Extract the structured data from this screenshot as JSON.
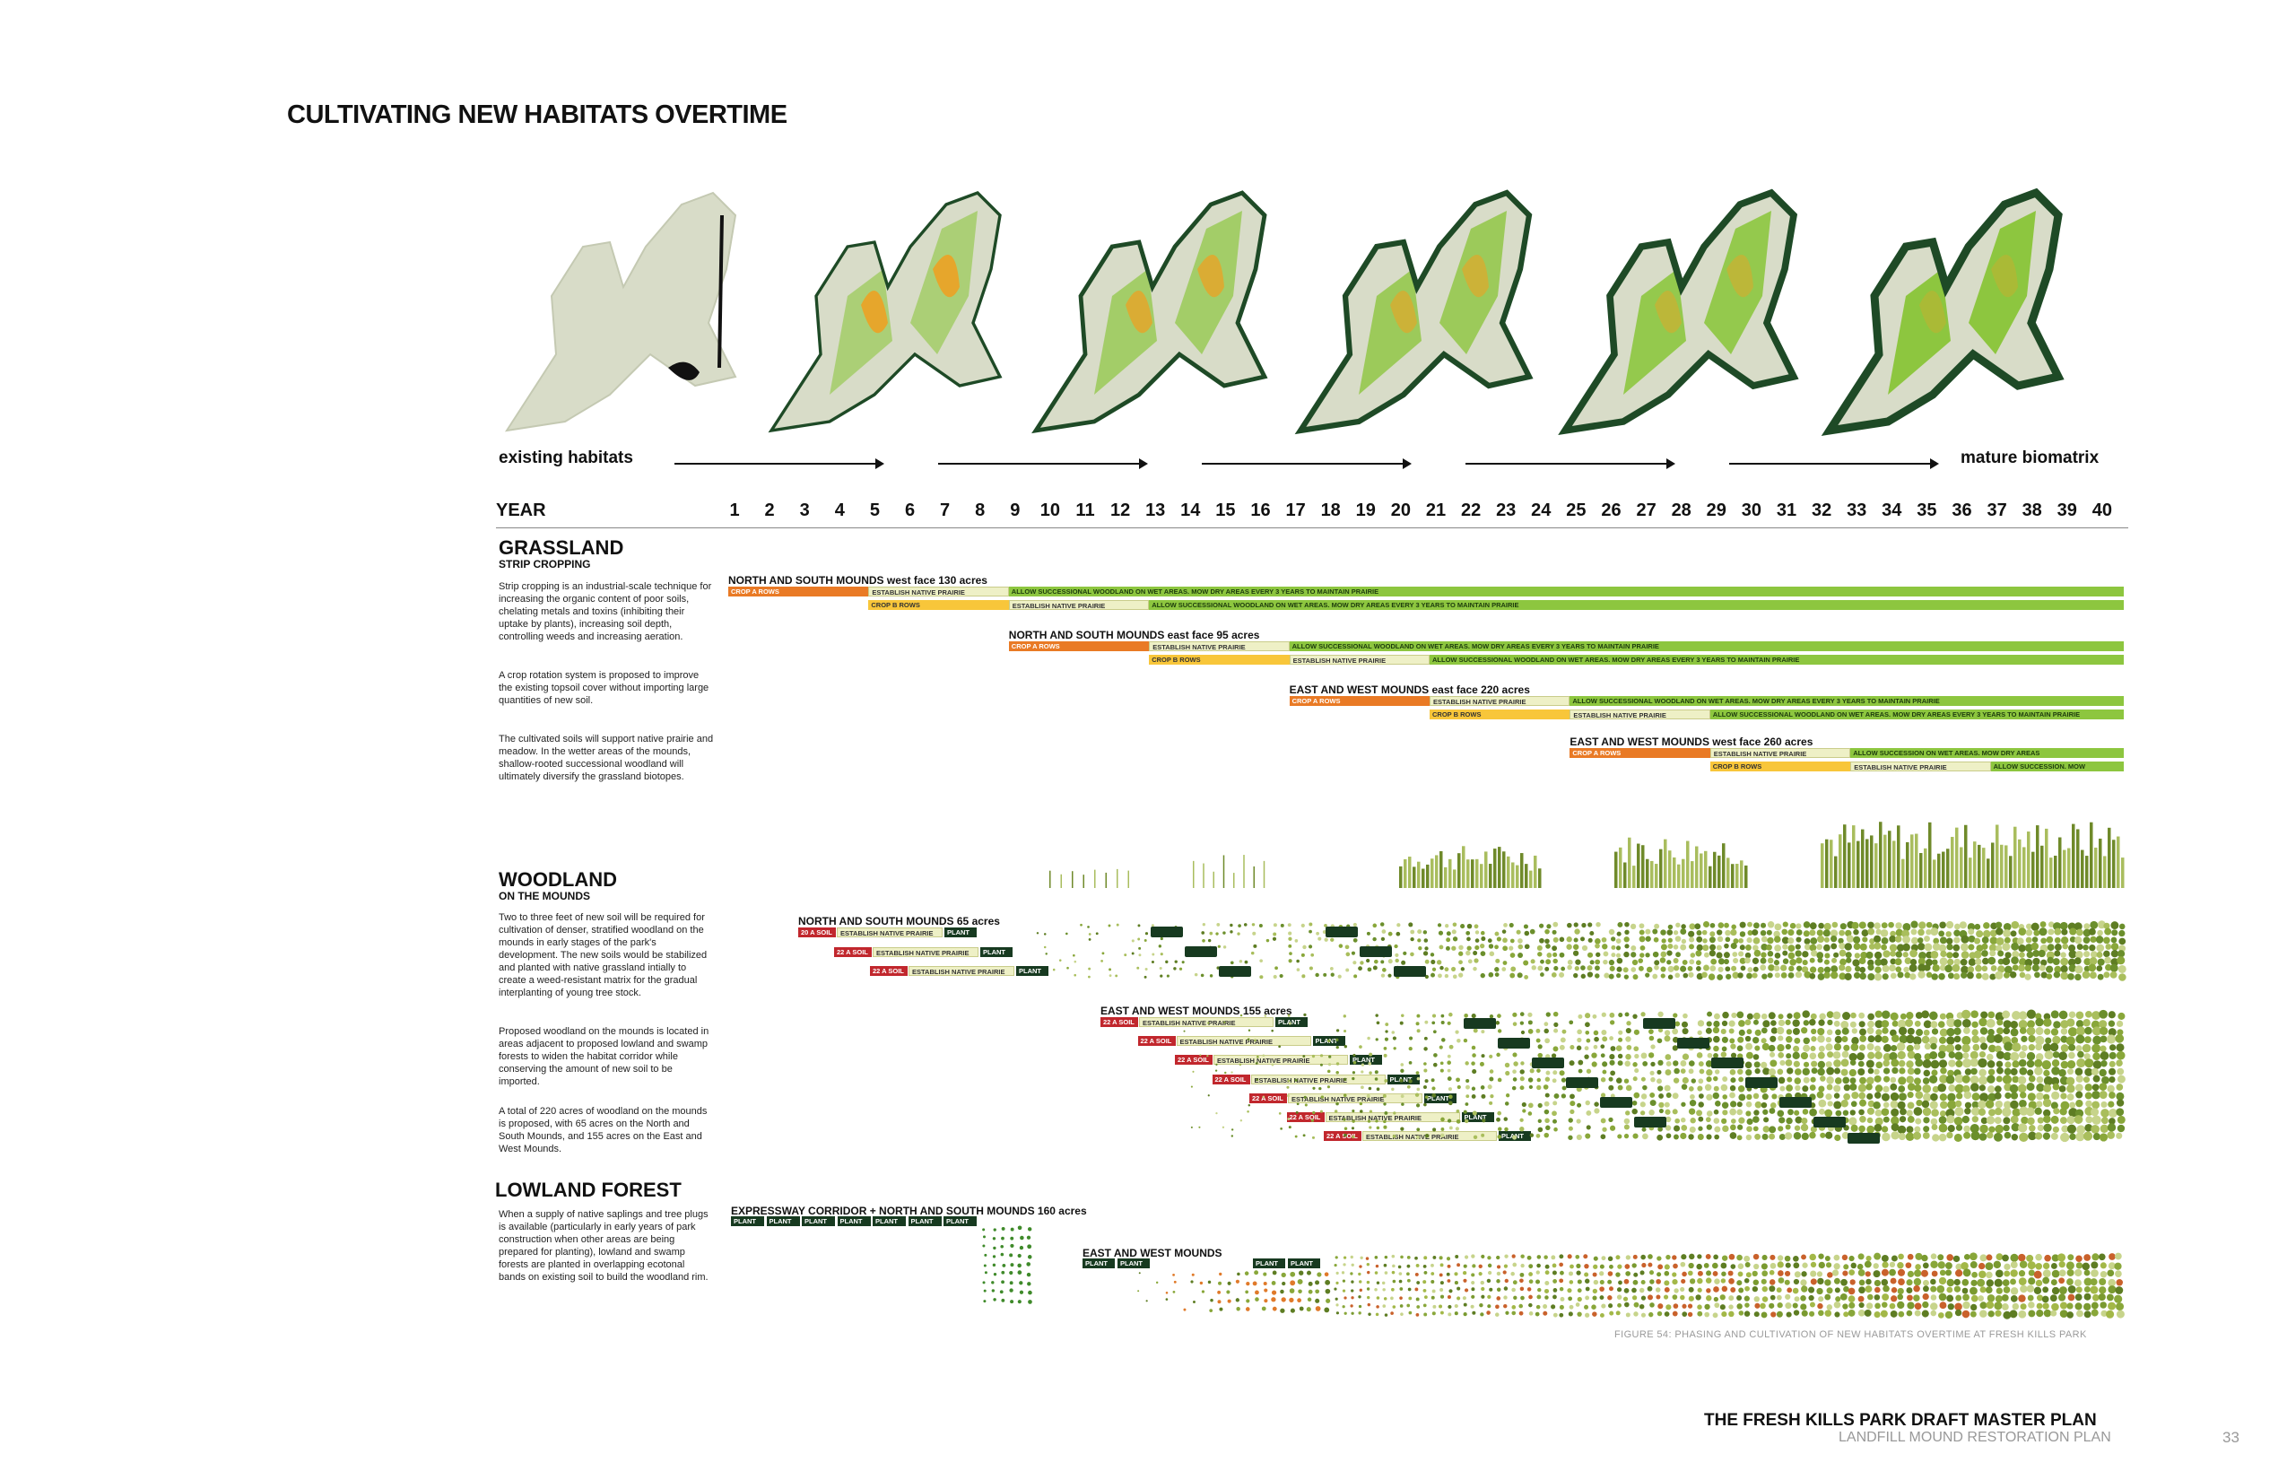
{
  "page": {
    "title": "CULTIVATING NEW HABITATS OVERTIME",
    "caption": "FIGURE 54: PHASING AND CULTIVATION OF NEW HABITATS OVERTIME AT FRESH KILLS PARK",
    "footer_title": "THE FRESH KILLS PARK DRAFT MASTER PLAN",
    "footer_subtitle": "LANDFILL MOUND RESTORATION PLAN",
    "page_number": "33"
  },
  "phase": {
    "start_label": "existing habitats",
    "end_label": "mature biomatrix"
  },
  "timeline": {
    "year_label": "YEAR",
    "years": [
      "1",
      "2",
      "3",
      "4",
      "5",
      "6",
      "7",
      "8",
      "9",
      "10",
      "11",
      "12",
      "13",
      "14",
      "15",
      "16",
      "17",
      "18",
      "19",
      "20",
      "21",
      "22",
      "23",
      "24",
      "25",
      "26",
      "27",
      "28",
      "29",
      "30",
      "31",
      "32",
      "33",
      "34",
      "35",
      "36",
      "37",
      "38",
      "39",
      "40"
    ]
  },
  "grassland": {
    "title": "GRASSLAND",
    "subtitle": "STRIP CROPPING",
    "paragraphs": [
      "Strip cropping is an industrial-scale technique for increasing the organic content of poor soils, chelating metals and toxins (inhibiting their uptake by plants), increasing soil depth, controlling weeds and increasing aeration.",
      "A crop rotation system is proposed to improve the existing topsoil cover without importing large quantities of new soil.",
      "The cultivated soils will support native prairie and meadow. In the wetter areas of the mounds, shallow-rooted successional woodland will ultimately diversify the grassland biotopes."
    ],
    "groups": [
      {
        "title": "NORTH AND SOUTH MOUNDS west face  130 acres",
        "start_year": 1,
        "row1": [
          "CROP A ROWS",
          "ESTABLISH NATIVE PRAIRIE",
          "ALLOW SUCCESSIONAL WOODLAND ON WET AREAS.  MOW DRY AREAS EVERY 3 YEARS TO MAINTAIN PRAIRIE"
        ],
        "row2": [
          "CROP B ROWS",
          "ESTABLISH NATIVE PRAIRIE",
          "ALLOW SUCCESSIONAL WOODLAND ON WET AREAS.  MOW DRY AREAS EVERY 3 YEARS TO MAINTAIN PRAIRIE"
        ]
      },
      {
        "title": "NORTH AND SOUTH MOUNDS east face  95 acres",
        "start_year": 9,
        "row1": [
          "CROP A ROWS",
          "ESTABLISH NATIVE PRAIRIE",
          "ALLOW SUCCESSIONAL WOODLAND ON WET AREAS.  MOW DRY AREAS EVERY 3 YEARS TO MAINTAIN PRAIRIE"
        ],
        "row2": [
          "CROP B ROWS",
          "ESTABLISH NATIVE PRAIRIE",
          "ALLOW SUCCESSIONAL WOODLAND ON WET AREAS.  MOW DRY AREAS EVERY 3 YEARS TO MAINTAIN PRAIRIE"
        ]
      },
      {
        "title": "EAST AND WEST MOUNDS east face  220 acres",
        "start_year": 17,
        "row1": [
          "CROP A ROWS",
          "ESTABLISH NATIVE PRAIRIE",
          "ALLOW SUCCESSIONAL WOODLAND ON WET AREAS.  MOW DRY AREAS EVERY 3 YEARS TO MAINTAIN PRAIRIE"
        ],
        "row2": [
          "CROP B ROWS",
          "ESTABLISH NATIVE PRAIRIE",
          "ALLOW SUCCESSIONAL WOODLAND ON WET AREAS.  MOW DRY AREAS EVERY 3 YEARS TO MAINTAIN PRAIRIE"
        ]
      },
      {
        "title": "EAST AND WEST MOUNDS west face  260 acres",
        "start_year": 25,
        "row1": [
          "CROP A ROWS",
          "ESTABLISH NATIVE PRAIRIE",
          "ALLOW SUCCESSION ON WET AREAS.  MOW DRY AREAS"
        ],
        "row2": [
          "CROP B ROWS",
          "ESTABLISH NATIVE PRAIRIE",
          "ALLOW SUCCESSION.  MOW"
        ]
      }
    ]
  },
  "woodland": {
    "title": "WOODLAND",
    "subtitle": "ON THE MOUNDS",
    "paragraphs": [
      "Two to three feet of new soil will be required for cultivation of denser, stratified woodland on the mounds in early stages of the park's development. The new soils would be stabilized and planted with native grassland intially to create a weed-resistant matrix for the gradual interplanting of young tree stock.",
      "Proposed woodland on the mounds is located in areas adjacent to proposed lowland and swamp forests to widen the habitat corridor while conserving the amount of new soil to be imported.",
      "A total of 220 acres of woodland on the mounds is proposed, with 65 acres on the North and South Mounds, and 155 acres on the East and West Mounds."
    ],
    "group1_title": "NORTH AND SOUTH MOUNDS   65 acres",
    "group1_rows": [
      {
        "soil": "20 A SOIL",
        "prairie": "ESTABLISH NATIVE PRAIRIE",
        "plant": "PLANT"
      },
      {
        "soil": "22 A SOIL",
        "prairie": "ESTABLISH NATIVE PRAIRIE",
        "plant": "PLANT"
      },
      {
        "soil": "22 A SOIL",
        "prairie": "ESTABLISH NATIVE PRAIRIE",
        "plant": "PLANT"
      }
    ],
    "group2_title": "EAST AND WEST MOUNDS   155 acres",
    "group2_rows": [
      {
        "soil": "22 A SOIL",
        "prairie": "ESTABLISH NATIVE PRAIRIE",
        "plant": "PLANT"
      },
      {
        "soil": "22 A SOIL",
        "prairie": "ESTABLISH NATIVE PRAIRIE",
        "plant": "PLANT"
      },
      {
        "soil": "22 A SOIL",
        "prairie": "ESTABLISH NATIVE PRAIRIE",
        "plant": "PLANT"
      },
      {
        "soil": "22 A SOIL",
        "prairie": "ESTABLISH NATIVE PRAIRIE",
        "plant": "PLANT"
      },
      {
        "soil": "22 A SOIL",
        "prairie": "ESTABLISH NATIVE PRAIRIE",
        "plant": "PLANT"
      },
      {
        "soil": "22 A SOIL",
        "prairie": "ESTABLISH NATIVE PRAIRIE",
        "plant": "PLANT"
      },
      {
        "soil": "22 A SOIL",
        "prairie": "ESTABLISH NATIVE PRAIRIE",
        "plant": "PLANT"
      }
    ]
  },
  "lowland": {
    "title": "LOWLAND FOREST",
    "paragraph": "When a supply of native saplings and tree plugs is available (particularly in early years of park construction when other areas are being prepared for planting), lowland and swamp forests are planted in overlapping ecotonal bands on existing soil to build the woodland rim.",
    "group1_title": "EXPRESSWAY CORRIDOR + NORTH AND SOUTH MOUNDS   160 acres",
    "group1_plants": [
      "PLANT",
      "PLANT",
      "PLANT",
      "PLANT",
      "PLANT",
      "PLANT",
      "PLANT"
    ],
    "group2_title": "EAST AND WEST MOUNDS",
    "group2_plants": [
      "PLANT",
      "PLANT",
      "PLANT",
      "PLANT"
    ]
  },
  "colors": {
    "crop_a": "#e97a25",
    "crop_b": "#f8c63a",
    "prairie": "#eef0c6",
    "succession": "#8dc63f",
    "soil": "#c1272d",
    "plant": "#173a20",
    "map_base": "#d8dcc8",
    "map_dark": "#1e4a26",
    "map_green": "#8dc63f",
    "map_orange": "#f0a020"
  }
}
